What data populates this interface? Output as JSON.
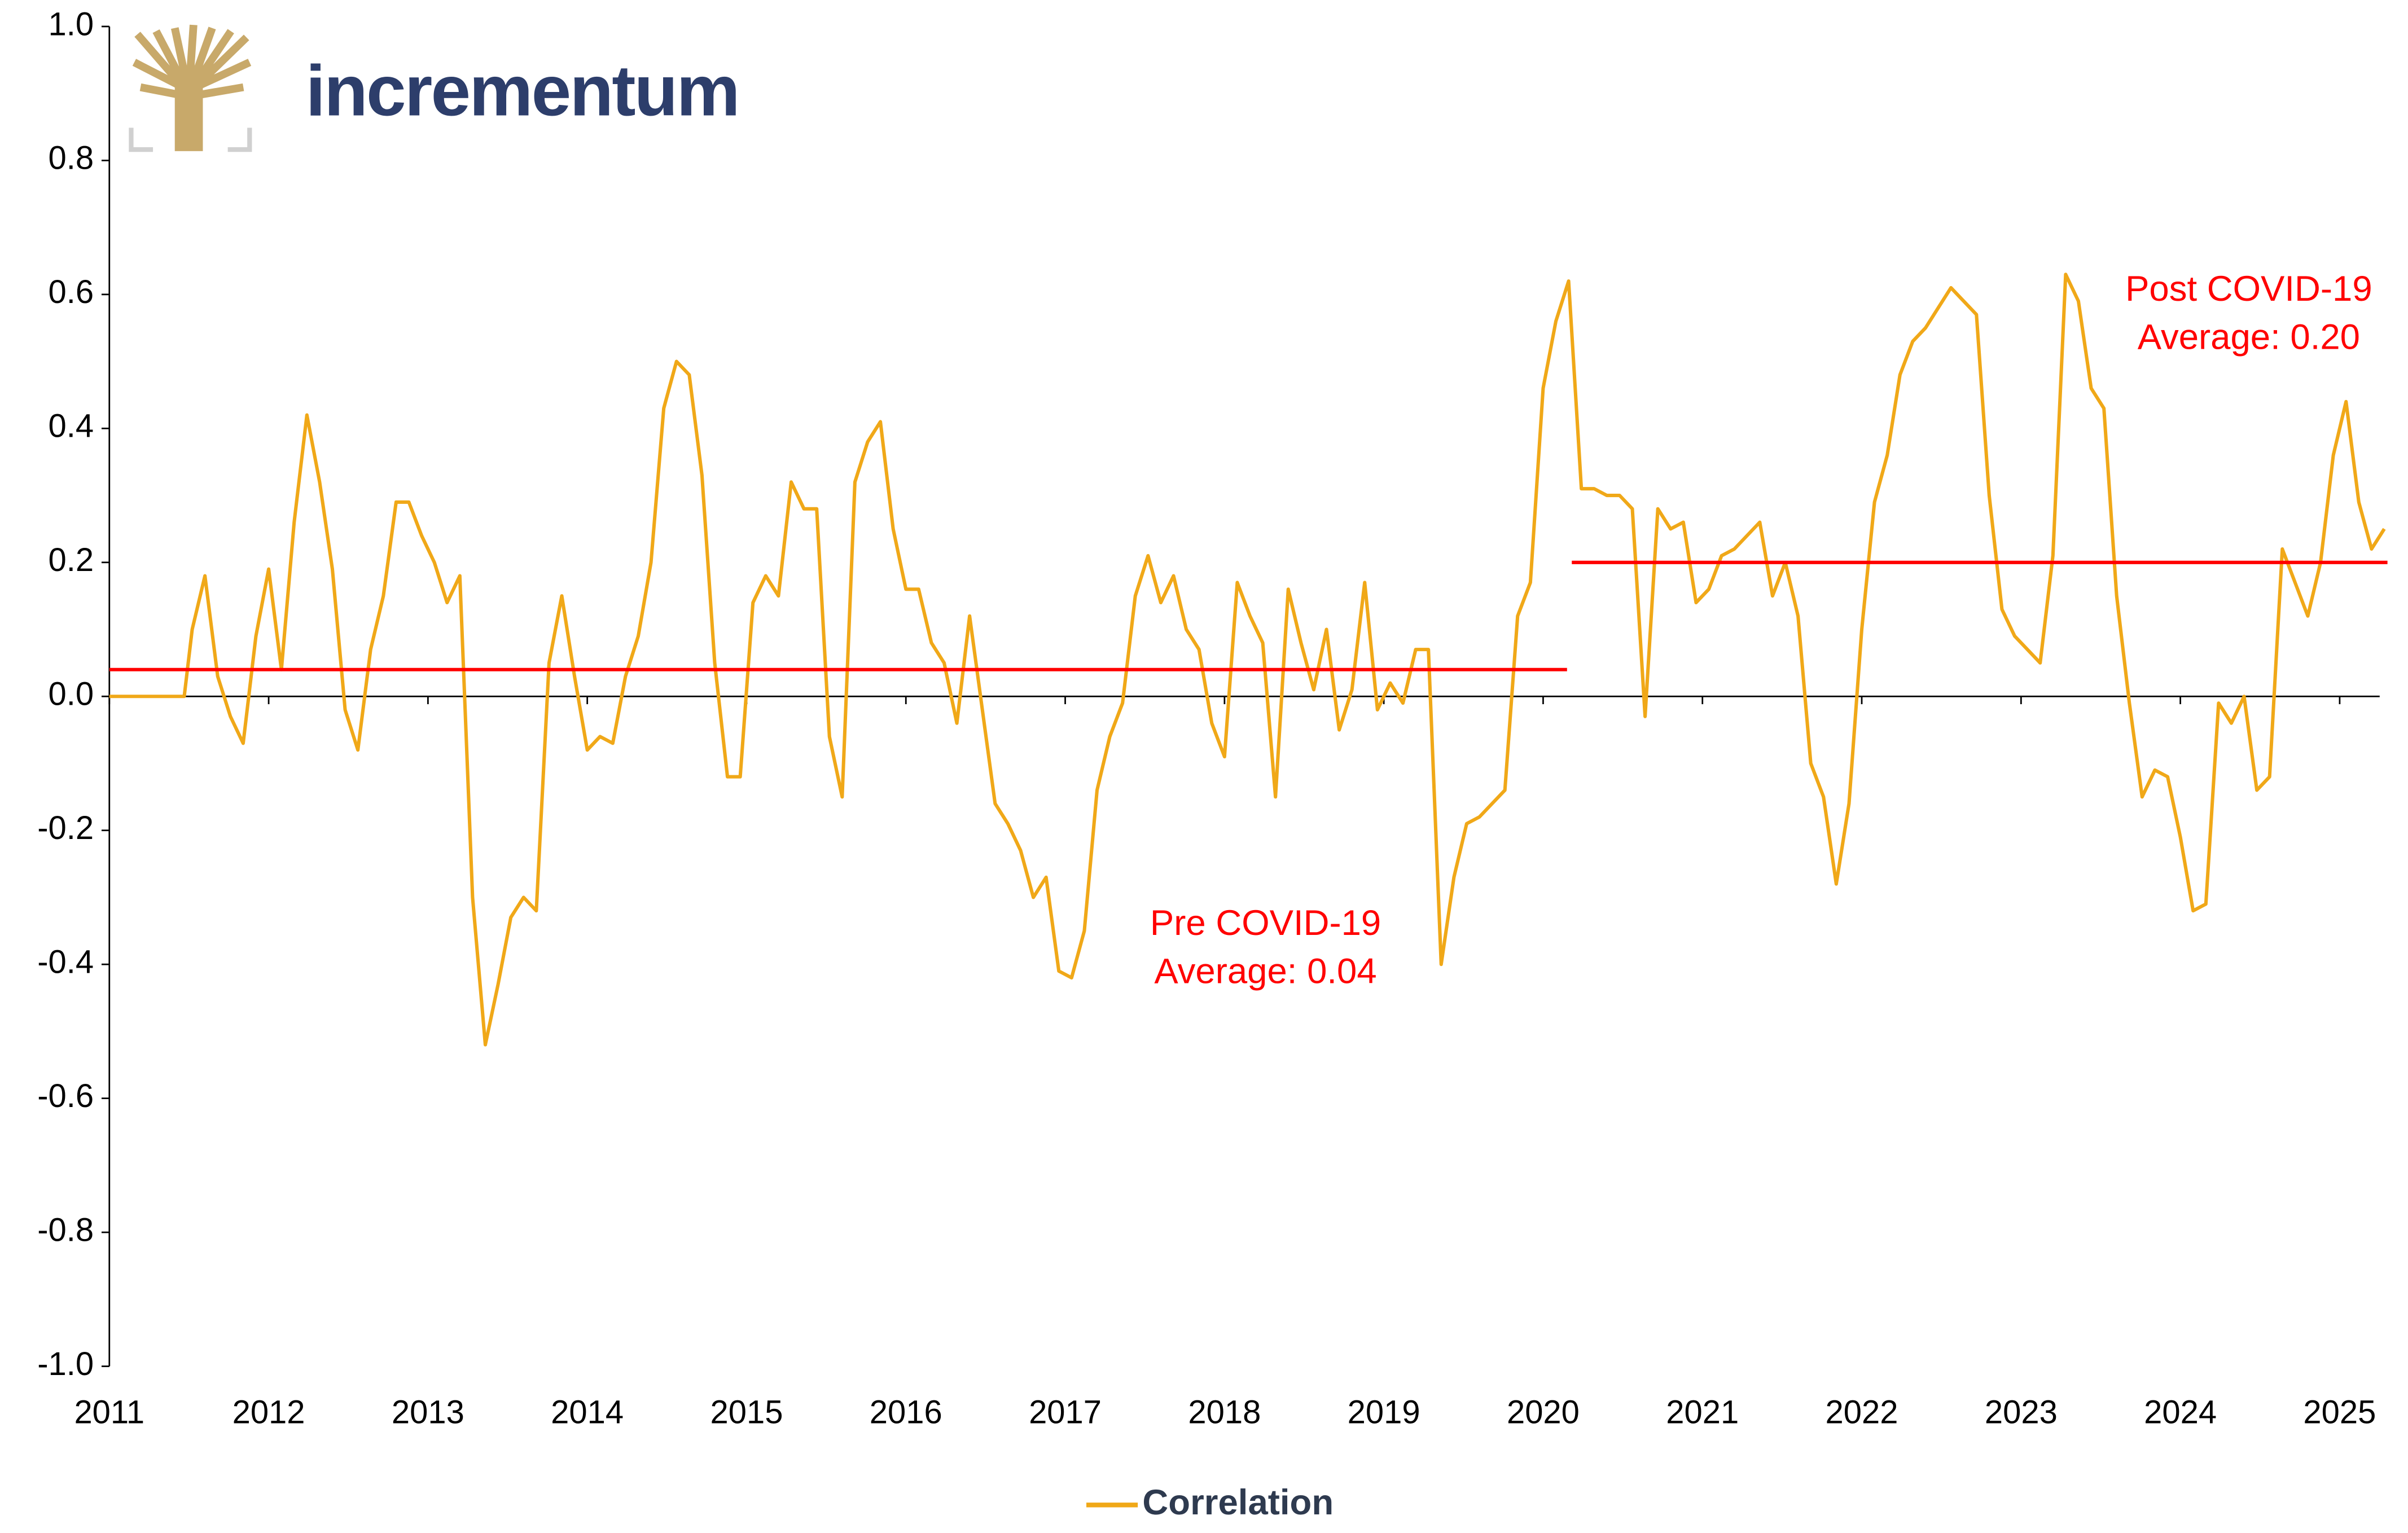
{
  "chart_data": {
    "type": "line",
    "logo": "incrementum",
    "xlim": [
      2011,
      2025.3
    ],
    "xticks": [
      2011,
      2012,
      2013,
      2014,
      2015,
      2016,
      2017,
      2018,
      2019,
      2020,
      2021,
      2022,
      2023,
      2024,
      2025
    ],
    "ylim": [
      -1,
      1
    ],
    "yticks": [
      {
        "value": 1,
        "label": "1.0"
      },
      0.8,
      0.6,
      0.4,
      0.2,
      {
        "value": 0,
        "label": "0.0"
      },
      -0.2,
      -0.4,
      -0.6,
      -0.8,
      {
        "value": -1,
        "label": "-1.0"
      }
    ],
    "x": [
      2011.0,
      2011.47,
      2011.52,
      2011.6,
      2011.68,
      2011.76,
      2011.84,
      2011.92,
      2012.0,
      2012.08,
      2012.16,
      2012.24,
      2012.32,
      2012.4,
      2012.48,
      2012.56,
      2012.64,
      2012.72,
      2012.8,
      2012.88,
      2012.96,
      2013.04,
      2013.12,
      2013.2,
      2013.28,
      2013.36,
      2013.44,
      2013.52,
      2013.6,
      2013.68,
      2013.76,
      2013.84,
      2013.92,
      2014.0,
      2014.08,
      2014.16,
      2014.24,
      2014.32,
      2014.4,
      2014.48,
      2014.56,
      2014.64,
      2014.72,
      2014.8,
      2014.88,
      2014.96,
      2015.04,
      2015.12,
      2015.2,
      2015.28,
      2015.36,
      2015.44,
      2015.52,
      2015.6,
      2015.68,
      2015.76,
      2015.84,
      2015.92,
      2016.0,
      2016.08,
      2016.16,
      2016.24,
      2016.32,
      2016.4,
      2016.48,
      2016.56,
      2016.64,
      2016.72,
      2016.8,
      2016.88,
      2016.96,
      2017.04,
      2017.12,
      2017.2,
      2017.28,
      2017.36,
      2017.44,
      2017.52,
      2017.6,
      2017.68,
      2017.76,
      2017.84,
      2017.92,
      2018.0,
      2018.08,
      2018.16,
      2018.24,
      2018.32,
      2018.4,
      2018.48,
      2018.56,
      2018.64,
      2018.72,
      2018.8,
      2018.88,
      2018.96,
      2019.04,
      2019.12,
      2019.2,
      2019.28,
      2019.36,
      2019.44,
      2019.52,
      2019.6,
      2019.68,
      2019.76,
      2019.84,
      2019.92,
      2020.0,
      2020.08,
      2020.16,
      2020.24,
      2020.32,
      2020.4,
      2020.48,
      2020.56,
      2020.64,
      2020.72,
      2020.8,
      2020.88,
      2020.96,
      2021.04,
      2021.12,
      2021.2,
      2021.28,
      2021.36,
      2021.44,
      2021.52,
      2021.6,
      2021.68,
      2021.76,
      2021.84,
      2021.92,
      2022.0,
      2022.08,
      2022.16,
      2022.24,
      2022.32,
      2022.4,
      2022.48,
      2022.56,
      2022.64,
      2022.72,
      2022.8,
      2022.88,
      2022.96,
      2023.04,
      2023.12,
      2023.2,
      2023.28,
      2023.36,
      2023.44,
      2023.52,
      2023.6,
      2023.68,
      2023.76,
      2023.84,
      2023.92,
      2024.0,
      2024.08,
      2024.16,
      2024.24,
      2024.32,
      2024.4,
      2024.48,
      2024.56,
      2024.64,
      2024.72,
      2024.8,
      2024.88,
      2024.96,
      2025.04,
      2025.12,
      2025.2,
      2025.28
    ],
    "series": [
      {
        "name": "Correlation",
        "color": "#f0a818",
        "values": [
          0,
          0,
          0.1,
          0.18,
          0.03,
          -0.03,
          -0.07,
          0.09,
          0.19,
          0.04,
          0.26,
          0.42,
          0.32,
          0.19,
          -0.02,
          -0.08,
          0.07,
          0.15,
          0.29,
          0.29,
          0.24,
          0.2,
          0.14,
          0.18,
          -0.3,
          -0.52,
          -0.43,
          -0.33,
          -0.3,
          -0.32,
          0.05,
          0.15,
          0.03,
          -0.08,
          -0.06,
          -0.07,
          0.03,
          0.09,
          0.2,
          0.43,
          0.5,
          0.48,
          0.33,
          0.05,
          -0.12,
          -0.12,
          0.14,
          0.18,
          0.15,
          0.32,
          0.28,
          0.28,
          -0.06,
          -0.15,
          0.32,
          0.38,
          0.41,
          0.25,
          0.16,
          0.16,
          0.08,
          0.05,
          -0.04,
          0.12,
          -0.02,
          -0.16,
          -0.19,
          -0.23,
          -0.3,
          -0.27,
          -0.41,
          -0.42,
          -0.35,
          -0.14,
          -0.06,
          -0.01,
          0.15,
          0.21,
          0.14,
          0.18,
          0.1,
          0.07,
          -0.04,
          -0.09,
          0.17,
          0.12,
          0.08,
          -0.15,
          0.16,
          0.08,
          0.01,
          0.1,
          -0.05,
          0.01,
          0.17,
          -0.02,
          0.02,
          -0.01,
          0.07,
          0.07,
          -0.4,
          -0.27,
          -0.19,
          -0.18,
          -0.16,
          -0.14,
          0.12,
          0.17,
          0.46,
          0.56,
          0.62,
          0.31,
          0.31,
          0.3,
          0.3,
          0.28,
          -0.03,
          0.28,
          0.25,
          0.26,
          0.14,
          0.16,
          0.21,
          0.22,
          0.24,
          0.26,
          0.15,
          0.2,
          0.12,
          -0.1,
          -0.15,
          -0.28,
          -0.16,
          0.1,
          0.29,
          0.36,
          0.48,
          0.53,
          0.55,
          0.58,
          0.61,
          0.59,
          0.57,
          0.3,
          0.13,
          0.09,
          0.07,
          0.05,
          0.21,
          0.63,
          0.59,
          0.46,
          0.43,
          0.15,
          -0.01,
          -0.15,
          -0.11,
          -0.12,
          -0.21,
          -0.32,
          -0.31,
          -0.01,
          -0.04,
          0.0,
          -0.14,
          -0.12,
          0.22,
          0.17,
          0.12,
          0.2,
          0.36,
          0.44,
          0.29,
          0.22,
          0.25
        ]
      }
    ],
    "annotations": [
      {
        "text": [
          "Pre COVID-19",
          "Average: 0.04"
        ],
        "value": 0.04,
        "start": 2011,
        "end": 2020.15,
        "color": "#ff0000"
      },
      {
        "text": [
          "Post COVID-19",
          "Average: 0.20"
        ],
        "value": 0.2,
        "start": 2020.18,
        "end": 2025.3,
        "color": "#ff0000"
      }
    ]
  }
}
